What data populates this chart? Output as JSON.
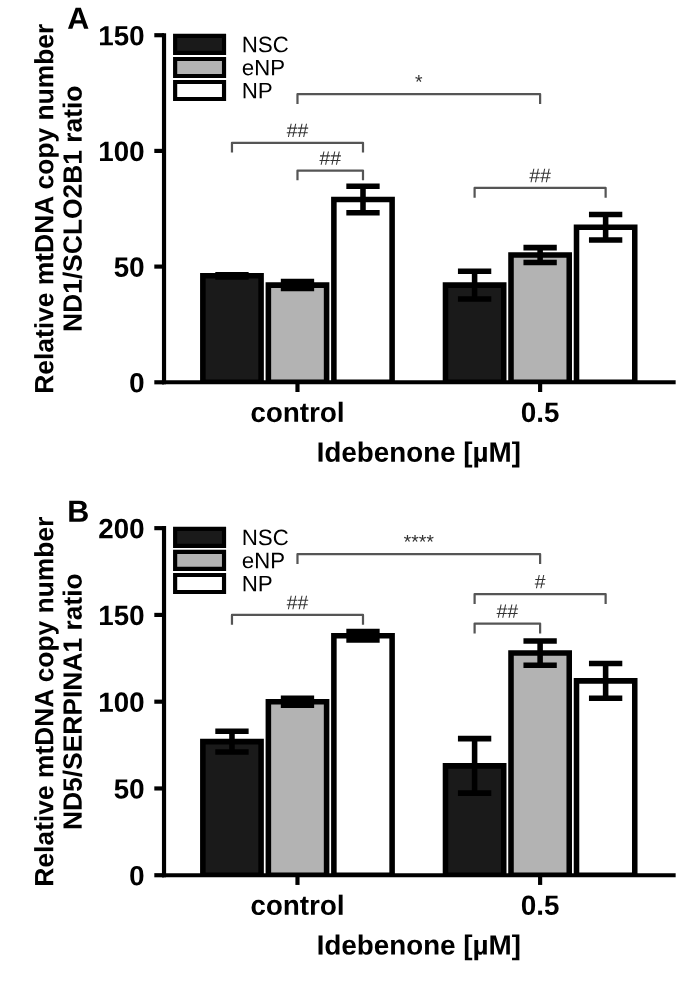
{
  "chart_data": [
    {
      "type": "bar",
      "title": "A",
      "xlabel": "Idebenone [µM]",
      "ylabel": "Relative mtDNA copy number\nND1/SCLO2B1 ratio",
      "categories": [
        "control",
        "0.5"
      ],
      "ylim": [
        0,
        150
      ],
      "yticks": [
        0,
        50,
        100,
        150
      ],
      "legend": "top left",
      "grid": false,
      "series": [
        {
          "name": "NSC",
          "color": "#1a1a1a",
          "values": [
            46,
            42
          ],
          "errors": [
            0.5,
            6
          ]
        },
        {
          "name": "eNP",
          "color": "#b3b3b3",
          "values": [
            42,
            55
          ],
          "errors": [
            1.5,
            3.2
          ]
        },
        {
          "name": "NP",
          "color": "#ffffff",
          "values": [
            79,
            67
          ],
          "errors": [
            5.7,
            5.5
          ]
        }
      ],
      "annotations": [
        "##",
        "##",
        "*",
        "##"
      ]
    },
    {
      "type": "bar",
      "title": "B",
      "xlabel": "Idebenone [µM]",
      "ylabel": "Relative mtDNA copy number\nND5/SERPINA1 ratio",
      "categories": [
        "control",
        "0.5"
      ],
      "ylim": [
        0,
        200
      ],
      "yticks": [
        0,
        50,
        100,
        150,
        200
      ],
      "legend": "top left",
      "grid": false,
      "series": [
        {
          "name": "NSC",
          "color": "#1a1a1a",
          "values": [
            77,
            63
          ],
          "errors": [
            6,
            15.7
          ]
        },
        {
          "name": "eNP",
          "color": "#b3b3b3",
          "values": [
            100,
            128
          ],
          "errors": [
            2,
            7
          ]
        },
        {
          "name": "NP",
          "color": "#ffffff",
          "values": [
            138,
            112
          ],
          "errors": [
            2.5,
            10
          ]
        }
      ],
      "annotations": [
        "****",
        "##",
        "#",
        "##"
      ]
    }
  ]
}
